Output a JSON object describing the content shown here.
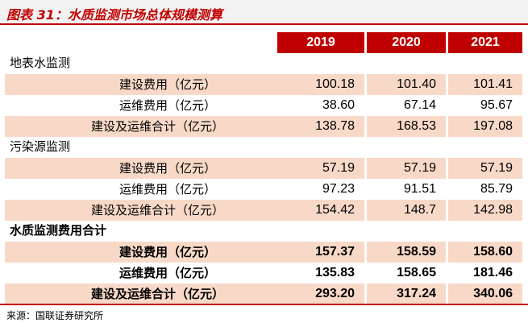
{
  "title": "图表 31：水质监测市场总体规模测算",
  "years": [
    "2019",
    "2020",
    "2021"
  ],
  "sections": [
    {
      "name": "地表水监测",
      "rows": [
        {
          "label": "建设费用（亿元）",
          "values": [
            "100.18",
            "101.40",
            "101.41"
          ]
        },
        {
          "label": "运维费用（亿元）",
          "values": [
            "38.60",
            "67.14",
            "95.67"
          ]
        },
        {
          "label": "建设及运维合计（亿元）",
          "values": [
            "138.78",
            "168.53",
            "197.08"
          ]
        }
      ]
    },
    {
      "name": "污染源监测",
      "rows": [
        {
          "label": "建设费用（亿元）",
          "values": [
            "57.19",
            "57.19",
            "57.19"
          ]
        },
        {
          "label": "运维费用（亿元）",
          "values": [
            "97.23",
            "91.51",
            "85.79"
          ]
        },
        {
          "label": "建设及运维合计（亿元）",
          "values": [
            "154.42",
            "148.7",
            "142.98"
          ]
        }
      ]
    },
    {
      "name": "水质监测费用合计",
      "rows": [
        {
          "label": "建设费用（亿元）",
          "values": [
            "157.37",
            "158.59",
            "158.60"
          ]
        },
        {
          "label": "运维费用（亿元）",
          "values": [
            "135.83",
            "158.65",
            "181.46"
          ]
        },
        {
          "label": "建设及运维合计（亿元）",
          "values": [
            "293.20",
            "317.24",
            "340.06"
          ]
        }
      ]
    }
  ],
  "source": "来源：国联证券研究所",
  "colors": {
    "accent": "#c00000",
    "shade": "#f8d9c8"
  }
}
